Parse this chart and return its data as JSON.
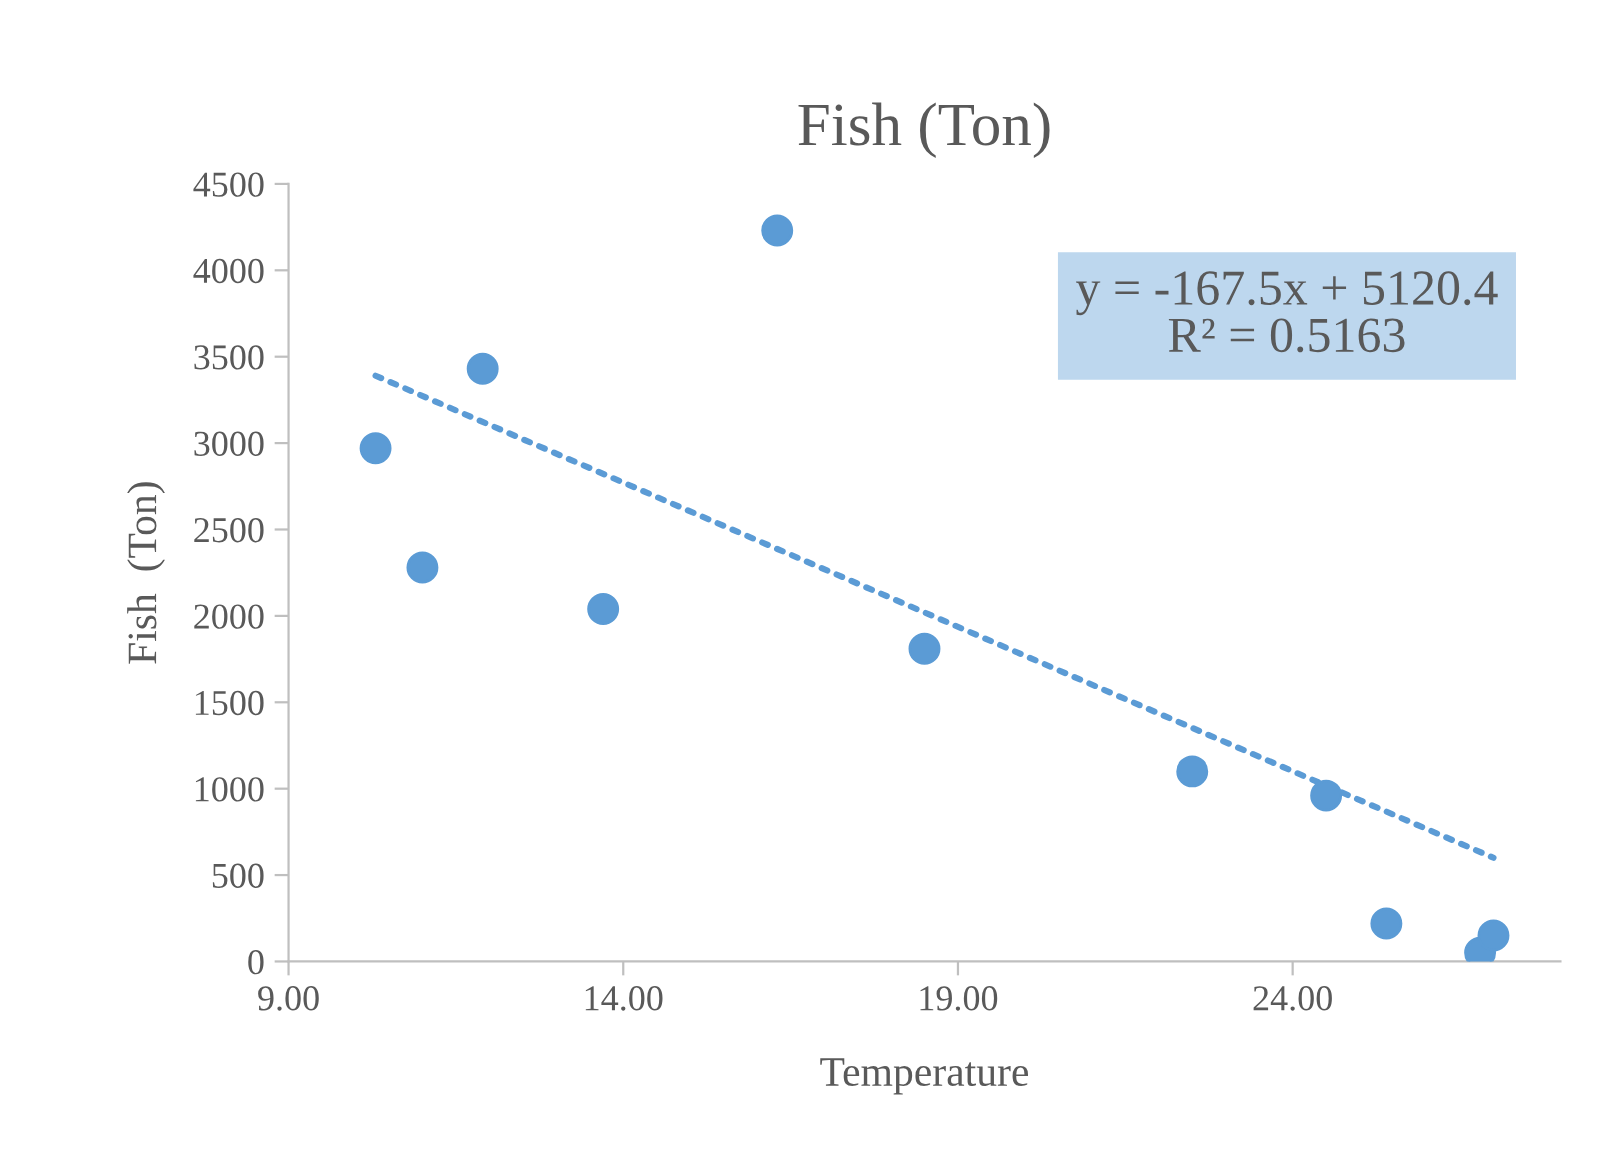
{
  "chart_data": {
    "type": "scatter",
    "title": "Fish (Ton)",
    "xlabel": "Temperature",
    "ylabel": "Fish  (Ton)",
    "series": [
      {
        "color": "#5b9bd5",
        "marker": "circle",
        "x": [
          10.3,
          11.0,
          11.9,
          13.7,
          16.3,
          18.5,
          22.5,
          24.5,
          25.4,
          26.8,
          27.0
        ],
        "values": [
          2970,
          2280,
          3430,
          2040,
          4230,
          1810,
          1100,
          960,
          220,
          50,
          150
        ]
      },
      {
        "type": "line",
        "color": "#5b9bd5",
        "line_style": "dotted",
        "x": [
          10.3,
          27.0
        ],
        "values": [
          3390,
          600
        ]
      }
    ],
    "annotations": [
      "y = -167.5x + 5120.4\nR² = 0.5163"
    ],
    "xlim": [
      9,
      28
    ],
    "xticks": [
      {
        "value": 9,
        "label": "9.00"
      },
      {
        "value": 14,
        "label": "14.00"
      },
      {
        "value": 19,
        "label": "19.00"
      },
      {
        "value": 24,
        "label": "24.00"
      }
    ],
    "ylim": [
      0,
      4500
    ],
    "yticks": [
      0,
      500,
      1000,
      1500,
      2000,
      2500,
      3000,
      3500,
      4000,
      4500
    ],
    "grid": false,
    "legend": false
  }
}
